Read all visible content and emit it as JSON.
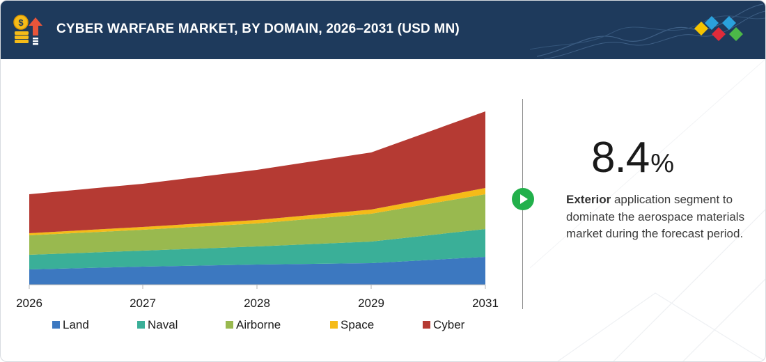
{
  "header": {
    "title": "CYBER WARFARE MARKET, BY DOMAIN, 2026–2031 (USD MN)"
  },
  "colors": {
    "header_bg": "#1e3a5c",
    "accent_green": "#22b04b",
    "brand_yellow": "#f5c400",
    "brand_blue": "#2aa1dc",
    "brand_red": "#e02b3a",
    "brand_green": "#4cb848"
  },
  "icons": {
    "header_icon": "dollar-coins-up-arrow-icon",
    "brand_icon": "diamond-cluster-logo-icon",
    "divider_icon": "play-arrow-icon"
  },
  "highlight": {
    "value": "8.4",
    "unit": "%",
    "segment": "Exterior",
    "text": " application segment to dominate the aerospace materials market during the forecast period."
  },
  "chart_data": {
    "type": "area",
    "stacked": true,
    "x": [
      "2026",
      "2027",
      "2028",
      "2029",
      "2031"
    ],
    "series": [
      {
        "name": "Land",
        "color": "#3c78c0",
        "values": [
          22,
          26,
          29,
          31,
          40
        ]
      },
      {
        "name": "Naval",
        "color": "#3aaf98",
        "values": [
          21,
          23,
          26,
          31,
          40
        ]
      },
      {
        "name": "Airborne",
        "color": "#99b94f",
        "values": [
          28,
          30,
          33,
          40,
          50
        ]
      },
      {
        "name": "Space",
        "color": "#f5bb18",
        "values": [
          3,
          4,
          5,
          6,
          9
        ]
      },
      {
        "name": "Cyber",
        "color": "#b53a33",
        "values": [
          56,
          62,
          72,
          82,
          110
        ]
      }
    ],
    "legend_position": "bottom",
    "grid": false,
    "y_axis_visible": false
  }
}
